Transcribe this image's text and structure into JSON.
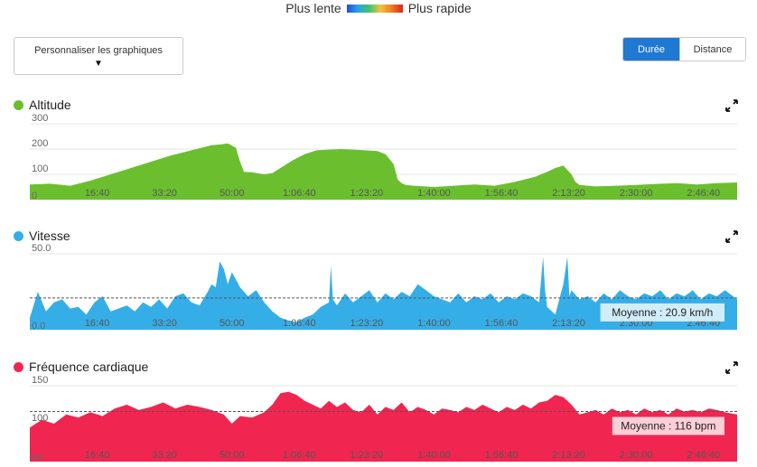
{
  "legend": {
    "slow": "Plus lente",
    "fast": "Plus rapide"
  },
  "customize": {
    "label": "Personnaliser les graphiques",
    "arrow": "▼"
  },
  "toggle": {
    "duration": "Durée",
    "distance": "Distance",
    "active": "duration"
  },
  "icons": {
    "expand": "expand-icon",
    "dropdown": "caret-down-icon"
  },
  "charts": [
    {
      "title": "Altitude",
      "color": "#6bbf2f",
      "chart_data": {
        "type": "area",
        "title": "Altitude",
        "xlabels": [
          "16:40",
          "33:20",
          "50:00",
          "1:06:40",
          "1:23:20",
          "1:40:00",
          "1:56:40",
          "2:13:20",
          "2:30:00",
          "2:46:40"
        ],
        "xtick_minutes": [
          16.67,
          33.33,
          50,
          66.67,
          83.33,
          100,
          116.67,
          133.33,
          150,
          166.67
        ],
        "ylabels": [
          "0",
          "100",
          "200",
          "300"
        ],
        "yticks": [
          0,
          100,
          200,
          300
        ],
        "ylim": [
          0,
          300
        ],
        "xlim_minutes": [
          0,
          175
        ],
        "x": [
          0,
          5,
          10,
          15,
          20,
          25,
          30,
          35,
          40,
          45,
          47,
          49,
          51,
          52,
          53,
          55,
          58,
          60,
          62,
          65,
          68,
          71,
          74,
          77,
          80,
          83,
          86,
          88,
          90,
          91,
          92,
          93,
          95,
          100,
          105,
          110,
          115,
          120,
          125,
          128,
          130,
          132,
          134,
          135,
          136,
          140,
          145,
          150,
          155,
          160,
          165,
          170,
          175
        ],
        "values": [
          60,
          63,
          55,
          75,
          100,
          125,
          150,
          175,
          195,
          215,
          218,
          222,
          205,
          150,
          110,
          108,
          100,
          105,
          125,
          155,
          180,
          195,
          198,
          200,
          198,
          195,
          192,
          180,
          140,
          80,
          65,
          58,
          55,
          50,
          55,
          60,
          55,
          70,
          90,
          110,
          125,
          135,
          100,
          70,
          58,
          52,
          55,
          58,
          62,
          65,
          60,
          65,
          68
        ]
      }
    },
    {
      "title": "Vitesse",
      "color": "#35aee8",
      "average_label": "Moyenne : 20.9 km/h",
      "chart_data": {
        "type": "area",
        "title": "Vitesse",
        "xlabels": [
          "16:40",
          "33:20",
          "50:00",
          "1:06:40",
          "1:23:20",
          "1:40:00",
          "1:56:40",
          "2:13:20",
          "2:30:00",
          "2:46:40"
        ],
        "xtick_minutes": [
          16.67,
          33.33,
          50,
          66.67,
          83.33,
          100,
          116.67,
          133.33,
          150,
          166.67
        ],
        "ylabels": [
          "0.0",
          "50.0"
        ],
        "yticks": [
          0,
          50
        ],
        "ylim": [
          0,
          50
        ],
        "xlim_minutes": [
          0,
          175
        ],
        "average": 20.9,
        "x": [
          0,
          2,
          4,
          6,
          8,
          10,
          12,
          14,
          16,
          18,
          20,
          22,
          24,
          26,
          28,
          30,
          32,
          34,
          36,
          38,
          40,
          42,
          44,
          45,
          46,
          47,
          48,
          49,
          50,
          52,
          54,
          56,
          58,
          60,
          62,
          64,
          66,
          68,
          70,
          72,
          74,
          74.5,
          75,
          76,
          78,
          80,
          82,
          84,
          86,
          88,
          90,
          92,
          94,
          96,
          98,
          100,
          102,
          104,
          106,
          108,
          110,
          112,
          114,
          116,
          118,
          120,
          122,
          124,
          126,
          127,
          127.5,
          128,
          130,
          132,
          133,
          133.5,
          134,
          136,
          138,
          140,
          142,
          144,
          146,
          148,
          150,
          152,
          154,
          156,
          158,
          160,
          162,
          164,
          166,
          168,
          170,
          172,
          175
        ],
        "values": [
          8,
          25,
          12,
          18,
          20,
          14,
          15,
          10,
          18,
          22,
          12,
          14,
          16,
          12,
          18,
          15,
          20,
          14,
          22,
          24,
          18,
          16,
          25,
          30,
          28,
          45,
          40,
          30,
          38,
          28,
          22,
          26,
          18,
          12,
          8,
          6,
          5,
          8,
          10,
          15,
          18,
          42,
          20,
          16,
          24,
          18,
          22,
          26,
          18,
          24,
          20,
          25,
          22,
          30,
          26,
          22,
          20,
          18,
          24,
          18,
          22,
          20,
          24,
          18,
          22,
          20,
          24,
          22,
          18,
          48,
          25,
          15,
          10,
          30,
          48,
          22,
          26,
          20,
          22,
          18,
          24,
          20,
          26,
          22,
          20,
          24,
          22,
          26,
          20,
          24,
          22,
          26,
          20,
          24,
          22,
          26,
          20
        ]
      }
    },
    {
      "title": "Fréquence cardiaque",
      "color": "#f02650",
      "average_label": "Moyenne : 116 bpm",
      "chart_data": {
        "type": "area",
        "title": "Fréquence cardiaque",
        "xlabels": [
          "16:40",
          "33:20",
          "50:00",
          "1:06:40",
          "1:23:20",
          "1:40:00",
          "1:56:40",
          "2:13:20",
          "2:30:00",
          "2:46:40"
        ],
        "xtick_minutes": [
          16.67,
          33.33,
          50,
          66.67,
          83.33,
          100,
          116.67,
          133.33,
          150,
          166.67
        ],
        "ylabels": [
          "50",
          "100",
          "150"
        ],
        "yticks": [
          50,
          100,
          150
        ],
        "ylim": [
          50,
          150
        ],
        "xlim_minutes": [
          0,
          175
        ],
        "average": 116,
        "x": [
          0,
          3,
          6,
          9,
          12,
          15,
          18,
          21,
          24,
          27,
          30,
          33,
          36,
          39,
          42,
          45,
          48,
          50,
          52,
          55,
          58,
          60,
          62,
          64,
          66,
          68,
          70,
          72,
          74,
          76,
          78,
          80,
          82,
          84,
          86,
          88,
          90,
          92,
          94,
          96,
          98,
          100,
          102,
          104,
          106,
          108,
          110,
          112,
          114,
          116,
          118,
          120,
          122,
          124,
          126,
          128,
          130,
          132,
          134,
          136,
          138,
          140,
          142,
          144,
          146,
          148,
          150,
          152,
          154,
          156,
          158,
          160,
          162,
          164,
          166,
          168,
          170,
          172,
          175
        ],
        "values": [
          95,
          105,
          100,
          112,
          108,
          115,
          110,
          120,
          125,
          118,
          122,
          128,
          120,
          125,
          122,
          118,
          112,
          100,
          110,
          108,
          115,
          125,
          140,
          142,
          138,
          130,
          125,
          120,
          130,
          122,
          128,
          118,
          115,
          125,
          112,
          122,
          118,
          128,
          115,
          122,
          118,
          112,
          120,
          118,
          115,
          122,
          118,
          125,
          120,
          115,
          122,
          118,
          125,
          120,
          128,
          130,
          138,
          135,
          125,
          112,
          115,
          118,
          112,
          120,
          115,
          118,
          112,
          120,
          115,
          118,
          112,
          120,
          116,
          118,
          115,
          120,
          118,
          115,
          112
        ]
      }
    }
  ]
}
